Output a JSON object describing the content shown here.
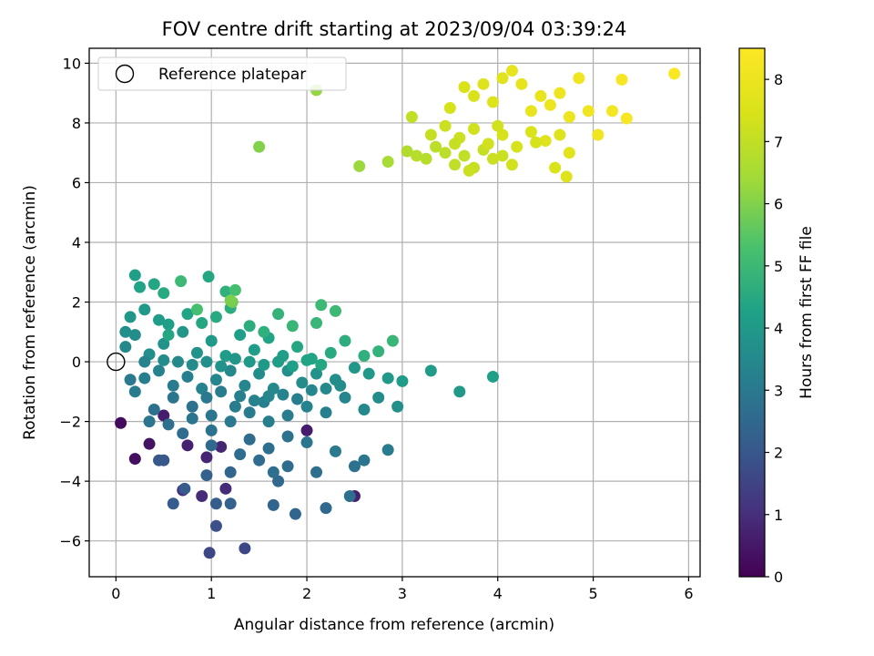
{
  "chart_data": {
    "type": "scatter",
    "title": "FOV centre drift starting at 2023/09/04 03:39:24",
    "xlabel": "Angular distance from reference (arcmin)",
    "ylabel": "Rotation from reference (arcmin)",
    "colorbar_label": "Hours from first FF file",
    "colormap": "viridis",
    "xlim": [
      -0.28,
      6.12
    ],
    "ylim": [
      -7.2,
      10.5
    ],
    "clim": [
      0,
      8.5
    ],
    "xticks": [
      0,
      1,
      2,
      3,
      4,
      5,
      6
    ],
    "xtick_labels": [
      "0",
      "1",
      "2",
      "3",
      "4",
      "5",
      "6"
    ],
    "yticks": [
      -6,
      -4,
      -2,
      0,
      2,
      4,
      6,
      8,
      10
    ],
    "ytick_labels": [
      "−6",
      "−4",
      "−2",
      "0",
      "2",
      "4",
      "6",
      "8",
      "10"
    ],
    "cticks": [
      0,
      1,
      2,
      3,
      4,
      5,
      6,
      7,
      8
    ],
    "ctick_labels": [
      "0",
      "1",
      "2",
      "3",
      "4",
      "5",
      "6",
      "7",
      "8"
    ],
    "grid": true,
    "legend": {
      "placement": "top-left",
      "entries": [
        {
          "label": "Reference platepar",
          "marker": "open-circle"
        }
      ]
    },
    "reference_point": {
      "x": 0,
      "y": 0
    },
    "points": [
      [
        0.05,
        -2.05,
        0.2
      ],
      [
        0.2,
        -3.25,
        0.3
      ],
      [
        0.35,
        -2.75,
        0.4
      ],
      [
        0.5,
        -1.8,
        0.6
      ],
      [
        0.75,
        -2.8,
        0.7
      ],
      [
        0.95,
        -3.2,
        0.8
      ],
      [
        0.9,
        -4.5,
        0.9
      ],
      [
        1.15,
        -4.25,
        0.9
      ],
      [
        1.1,
        -2.85,
        0.8
      ],
      [
        2.0,
        -2.3,
        0.6
      ],
      [
        2.5,
        -4.5,
        0.7
      ],
      [
        0.7,
        -4.3,
        1.0
      ],
      [
        0.98,
        -6.4,
        1.6
      ],
      [
        1.35,
        -6.25,
        1.6
      ],
      [
        1.05,
        -5.5,
        1.8
      ],
      [
        0.45,
        -3.3,
        2.0
      ],
      [
        0.5,
        -3.3,
        2.0
      ],
      [
        0.6,
        -4.75,
        2.1
      ],
      [
        0.72,
        -4.25,
        2.1
      ],
      [
        1.05,
        -4.75,
        2.2
      ],
      [
        1.2,
        -4.75,
        2.3
      ],
      [
        1.65,
        -4.8,
        2.4
      ],
      [
        1.88,
        -5.1,
        2.4
      ],
      [
        2.2,
        -4.9,
        2.5
      ],
      [
        2.45,
        -4.5,
        2.7
      ],
      [
        0.95,
        -3.8,
        2.3
      ],
      [
        1.2,
        -3.7,
        2.4
      ],
      [
        1.7,
        -4.0,
        2.5
      ],
      [
        0.7,
        -2.4,
        2.6
      ],
      [
        1.0,
        -2.8,
        2.5
      ],
      [
        1.3,
        -3.1,
        2.6
      ],
      [
        1.5,
        -3.3,
        2.6
      ],
      [
        1.65,
        -3.7,
        2.7
      ],
      [
        1.8,
        -3.5,
        2.6
      ],
      [
        2.1,
        -3.7,
        2.7
      ],
      [
        2.5,
        -3.5,
        2.8
      ],
      [
        2.6,
        -3.3,
        2.9
      ],
      [
        1.4,
        -2.6,
        2.6
      ],
      [
        1.6,
        -2.9,
        2.7
      ],
      [
        1.8,
        -2.5,
        2.8
      ],
      [
        2.0,
        -2.7,
        2.9
      ],
      [
        2.3,
        -3.0,
        3.0
      ],
      [
        2.85,
        -2.95,
        3.1
      ],
      [
        0.4,
        -1.6,
        2.8
      ],
      [
        0.6,
        -1.2,
        2.9
      ],
      [
        0.8,
        -1.5,
        2.8
      ],
      [
        1.0,
        -1.8,
        2.9
      ],
      [
        1.2,
        -2.0,
        3.0
      ],
      [
        1.4,
        -1.7,
        3.1
      ],
      [
        1.6,
        -2.0,
        3.2
      ],
      [
        1.8,
        -1.8,
        3.1
      ],
      [
        2.0,
        -1.5,
        3.3
      ],
      [
        2.2,
        -1.7,
        3.2
      ],
      [
        2.4,
        -1.2,
        3.4
      ],
      [
        2.6,
        -1.6,
        3.5
      ],
      [
        2.75,
        -1.2,
        3.6
      ],
      [
        2.95,
        -1.5,
        3.7
      ],
      [
        0.15,
        -0.6,
        3.0
      ],
      [
        0.3,
        -0.55,
        3.2
      ],
      [
        0.45,
        -0.3,
        3.3
      ],
      [
        0.6,
        -0.8,
        3.1
      ],
      [
        0.75,
        -0.5,
        3.2
      ],
      [
        0.9,
        -0.9,
        3.3
      ],
      [
        1.05,
        -0.6,
        3.4
      ],
      [
        1.2,
        -0.3,
        3.5
      ],
      [
        1.35,
        -0.8,
        3.4
      ],
      [
        1.5,
        -0.4,
        3.6
      ],
      [
        1.65,
        -0.9,
        3.5
      ],
      [
        1.8,
        -0.3,
        3.7
      ],
      [
        1.95,
        -0.7,
        3.6
      ],
      [
        2.1,
        -0.4,
        3.8
      ],
      [
        2.3,
        -0.6,
        3.7
      ],
      [
        2.5,
        -0.2,
        3.9
      ],
      [
        2.65,
        -0.4,
        4.0
      ],
      [
        2.85,
        -0.55,
        4.0
      ],
      [
        3.0,
        -0.65,
        4.1
      ],
      [
        3.3,
        -0.3,
        4.1
      ],
      [
        3.6,
        -1.0,
        4.0
      ],
      [
        3.95,
        -0.5,
        4.2
      ],
      [
        0.1,
        0.5,
        3.5
      ],
      [
        0.2,
        0.9,
        3.6
      ],
      [
        0.35,
        0.25,
        3.7
      ],
      [
        0.5,
        0.6,
        3.8
      ],
      [
        0.7,
        1.0,
        3.9
      ],
      [
        0.85,
        0.3,
        3.8
      ],
      [
        1.0,
        0.7,
        4.0
      ],
      [
        1.15,
        0.2,
        4.1
      ],
      [
        1.3,
        0.9,
        4.2
      ],
      [
        1.45,
        0.4,
        4.1
      ],
      [
        1.6,
        0.8,
        4.3
      ],
      [
        1.75,
        0.2,
        4.2
      ],
      [
        1.9,
        0.5,
        4.4
      ],
      [
        2.05,
        0.1,
        4.3
      ],
      [
        2.25,
        0.3,
        4.5
      ],
      [
        2.4,
        0.7,
        4.6
      ],
      [
        2.6,
        0.2,
        4.7
      ],
      [
        2.75,
        0.35,
        4.8
      ],
      [
        2.9,
        0.7,
        4.9
      ],
      [
        0.1,
        1.0,
        3.7
      ],
      [
        0.15,
        1.5,
        3.9
      ],
      [
        0.3,
        1.75,
        4.0
      ],
      [
        0.45,
        1.4,
        4.1
      ],
      [
        0.55,
        1.25,
        4.2
      ],
      [
        0.75,
        1.6,
        4.3
      ],
      [
        0.9,
        1.3,
        4.4
      ],
      [
        1.05,
        1.5,
        4.5
      ],
      [
        1.2,
        1.8,
        4.6
      ],
      [
        1.4,
        1.2,
        4.6
      ],
      [
        1.55,
        1.0,
        4.7
      ],
      [
        1.7,
        1.6,
        4.8
      ],
      [
        1.85,
        1.2,
        4.9
      ],
      [
        2.1,
        1.3,
        4.9
      ],
      [
        2.3,
        1.7,
        5.0
      ],
      [
        2.15,
        1.9,
        5.0
      ],
      [
        0.2,
        2.9,
        4.2
      ],
      [
        0.25,
        2.5,
        4.3
      ],
      [
        0.4,
        2.6,
        4.4
      ],
      [
        0.5,
        2.3,
        4.5
      ],
      [
        0.68,
        2.7,
        5.0
      ],
      [
        0.97,
        2.85,
        4.4
      ],
      [
        1.15,
        2.35,
        4.7
      ],
      [
        1.25,
        2.4,
        5.2
      ],
      [
        1.22,
        2.0,
        5.8
      ],
      [
        1.2,
        2.05,
        5.9
      ],
      [
        0.85,
        1.75,
        5.2
      ],
      [
        0.55,
        0.9,
        4.4
      ],
      [
        0.2,
        -1.0,
        3.1
      ],
      [
        0.35,
        -2.0,
        2.9
      ],
      [
        0.55,
        -2.1,
        2.7
      ],
      [
        0.8,
        -1.9,
        2.9
      ],
      [
        1.0,
        -2.3,
        2.8
      ],
      [
        1.25,
        -1.5,
        3.1
      ],
      [
        1.55,
        -1.35,
        3.2
      ],
      [
        1.75,
        -1.1,
        3.3
      ],
      [
        1.9,
        -1.25,
        3.2
      ],
      [
        2.05,
        -0.95,
        3.4
      ],
      [
        2.2,
        -0.9,
        3.5
      ],
      [
        2.35,
        -0.8,
        3.6
      ],
      [
        0.65,
        0.0,
        3.5
      ],
      [
        0.8,
        -0.1,
        3.6
      ],
      [
        0.95,
        0.0,
        3.7
      ],
      [
        1.1,
        -0.15,
        3.8
      ],
      [
        1.25,
        0.1,
        3.9
      ],
      [
        1.4,
        0.0,
        4.0
      ],
      [
        1.55,
        -0.1,
        4.0
      ],
      [
        1.7,
        0.0,
        4.1
      ],
      [
        1.85,
        -0.15,
        4.2
      ],
      [
        2.0,
        0.05,
        4.3
      ],
      [
        2.15,
        -0.1,
        4.4
      ],
      [
        0.95,
        -1.2,
        3.0
      ],
      [
        1.1,
        -1.0,
        3.1
      ],
      [
        1.3,
        -1.15,
        3.2
      ],
      [
        1.45,
        -1.3,
        3.3
      ],
      [
        1.6,
        -1.15,
        3.4
      ],
      [
        0.3,
        0.0,
        3.3
      ],
      [
        0.5,
        0.05,
        3.6
      ],
      [
        1.5,
        7.2,
        6.0
      ],
      [
        2.1,
        9.1,
        6.2
      ],
      [
        2.55,
        6.55,
        6.3
      ],
      [
        2.85,
        6.7,
        6.5
      ],
      [
        3.05,
        7.05,
        6.7
      ],
      [
        3.15,
        6.9,
        6.8
      ],
      [
        3.25,
        6.8,
        6.8
      ],
      [
        3.35,
        7.2,
        6.9
      ],
      [
        3.45,
        7.0,
        6.9
      ],
      [
        3.55,
        6.6,
        7.0
      ],
      [
        3.65,
        6.9,
        7.0
      ],
      [
        3.75,
        6.5,
        7.1
      ],
      [
        3.85,
        7.1,
        7.1
      ],
      [
        3.95,
        6.8,
        7.2
      ],
      [
        4.05,
        6.9,
        7.2
      ],
      [
        4.15,
        6.6,
        7.3
      ],
      [
        3.1,
        8.2,
        7.0
      ],
      [
        3.3,
        7.6,
        7.1
      ],
      [
        3.45,
        7.9,
        7.2
      ],
      [
        3.6,
        7.5,
        7.2
      ],
      [
        3.75,
        7.8,
        7.3
      ],
      [
        3.9,
        7.3,
        7.3
      ],
      [
        4.05,
        7.6,
        7.4
      ],
      [
        4.2,
        7.2,
        7.4
      ],
      [
        4.35,
        7.7,
        7.5
      ],
      [
        4.5,
        7.4,
        7.6
      ],
      [
        4.65,
        7.6,
        7.6
      ],
      [
        4.75,
        7.0,
        7.7
      ],
      [
        3.5,
        8.5,
        7.4
      ],
      [
        3.65,
        9.2,
        7.5
      ],
      [
        3.75,
        8.9,
        7.5
      ],
      [
        3.85,
        9.3,
        7.6
      ],
      [
        3.95,
        8.7,
        7.6
      ],
      [
        4.05,
        9.5,
        7.7
      ],
      [
        4.15,
        9.75,
        7.8
      ],
      [
        4.25,
        9.3,
        7.8
      ],
      [
        4.35,
        8.4,
        7.9
      ],
      [
        4.45,
        8.9,
        7.9
      ],
      [
        4.55,
        8.6,
        8.0
      ],
      [
        4.65,
        9.0,
        8.0
      ],
      [
        4.75,
        8.2,
        8.0
      ],
      [
        4.85,
        9.5,
        8.1
      ],
      [
        4.95,
        8.4,
        8.1
      ],
      [
        5.05,
        7.6,
        8.1
      ],
      [
        5.2,
        8.4,
        8.2
      ],
      [
        5.3,
        9.45,
        8.3
      ],
      [
        5.35,
        8.15,
        8.3
      ],
      [
        5.85,
        9.65,
        8.4
      ],
      [
        4.72,
        6.2,
        7.6
      ],
      [
        4.6,
        6.5,
        7.5
      ],
      [
        3.7,
        6.4,
        7.2
      ],
      [
        3.55,
        7.3,
        7.1
      ],
      [
        4.4,
        7.35,
        7.4
      ],
      [
        4.0,
        7.9,
        7.3
      ]
    ]
  }
}
